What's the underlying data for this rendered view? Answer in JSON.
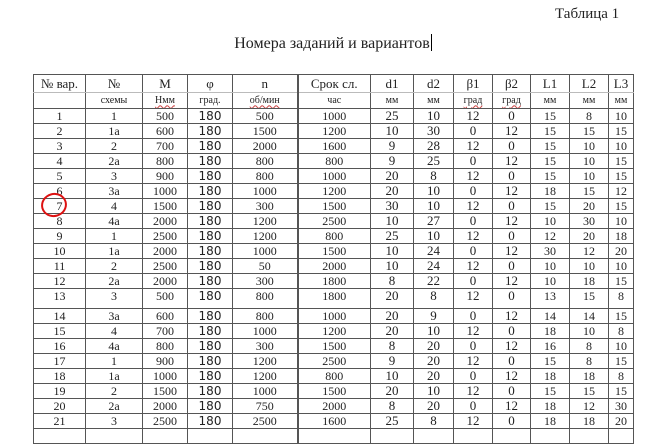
{
  "caption": "Таблица 1",
  "title": "Номера заданий и вариантов",
  "header_top": [
    "№ вар.",
    "№",
    "M",
    "φ",
    "n",
    "Срок сл.",
    "d1",
    "d2",
    "β1",
    "β2",
    "L1",
    "L2",
    "L3"
  ],
  "header_units": [
    "",
    "схемы",
    "Нмм",
    "град.",
    "об/мин",
    "час",
    "мм",
    "мм",
    "град",
    "град",
    "мм",
    "мм",
    "мм"
  ],
  "rows": [
    [
      "1",
      "1",
      "500",
      "180",
      "500",
      "1000",
      "25",
      "10",
      "12",
      "0",
      "15",
      "8",
      "10"
    ],
    [
      "2",
      "1а",
      "600",
      "180",
      "1500",
      "1200",
      "10",
      "30",
      "0",
      "12",
      "15",
      "15",
      "15"
    ],
    [
      "3",
      "2",
      "700",
      "180",
      "2000",
      "1600",
      "9",
      "28",
      "12",
      "0",
      "15",
      "10",
      "10"
    ],
    [
      "4",
      "2а",
      "800",
      "180",
      "800",
      "800",
      "9",
      "25",
      "0",
      "12",
      "15",
      "10",
      "15"
    ],
    [
      "5",
      "3",
      "900",
      "180",
      "800",
      "1000",
      "20",
      "8",
      "12",
      "0",
      "15",
      "10",
      "15"
    ],
    [
      "6",
      "3а",
      "1000",
      "180",
      "1000",
      "1200",
      "20",
      "10",
      "0",
      "12",
      "18",
      "15",
      "12"
    ],
    [
      "7",
      "4",
      "1500",
      "180",
      "300",
      "1500",
      "30",
      "10",
      "12",
      "0",
      "15",
      "20",
      "15"
    ],
    [
      "8",
      "4а",
      "2000",
      "180",
      "1200",
      "2500",
      "10",
      "27",
      "0",
      "12",
      "10",
      "30",
      "10"
    ],
    [
      "9",
      "1",
      "2500",
      "180",
      "1200",
      "800",
      "25",
      "10",
      "12",
      "0",
      "12",
      "20",
      "18"
    ],
    [
      "10",
      "1а",
      "2000",
      "180",
      "1000",
      "1500",
      "10",
      "24",
      "0",
      "12",
      "30",
      "12",
      "20"
    ],
    [
      "11",
      "2",
      "2500",
      "180",
      "50",
      "2000",
      "10",
      "24",
      "12",
      "0",
      "10",
      "10",
      "10"
    ],
    [
      "12",
      "2а",
      "2000",
      "180",
      "300",
      "1800",
      "8",
      "22",
      "0",
      "12",
      "10",
      "18",
      "15"
    ],
    [
      "13",
      "3",
      "500",
      "180",
      "800",
      "1800",
      "20",
      "8",
      "12",
      "0",
      "13",
      "15",
      "8"
    ],
    [
      "14",
      "3а",
      "600",
      "180",
      "800",
      "1000",
      "20",
      "9",
      "0",
      "12",
      "14",
      "14",
      "15"
    ],
    [
      "15",
      "4",
      "700",
      "180",
      "1000",
      "1200",
      "20",
      "10",
      "12",
      "0",
      "18",
      "10",
      "8"
    ],
    [
      "16",
      "4а",
      "800",
      "180",
      "300",
      "1500",
      "8",
      "20",
      "0",
      "12",
      "16",
      "8",
      "10"
    ],
    [
      "17",
      "1",
      "900",
      "180",
      "1200",
      "2500",
      "9",
      "20",
      "12",
      "0",
      "15",
      "8",
      "15"
    ],
    [
      "18",
      "1а",
      "1000",
      "180",
      "1200",
      "800",
      "10",
      "20",
      "0",
      "12",
      "18",
      "18",
      "8"
    ],
    [
      "19",
      "2",
      "1500",
      "180",
      "1000",
      "1500",
      "20",
      "10",
      "12",
      "0",
      "15",
      "15",
      "15"
    ],
    [
      "20",
      "2а",
      "2000",
      "180",
      "750",
      "2000",
      "8",
      "20",
      "0",
      "12",
      "18",
      "12",
      "30"
    ],
    [
      "21",
      "3",
      "2500",
      "180",
      "2500",
      "1600",
      "25",
      "8",
      "12",
      "0",
      "18",
      "18",
      "20"
    ]
  ],
  "highlight": {
    "row": "7",
    "color": "#dd1111"
  }
}
